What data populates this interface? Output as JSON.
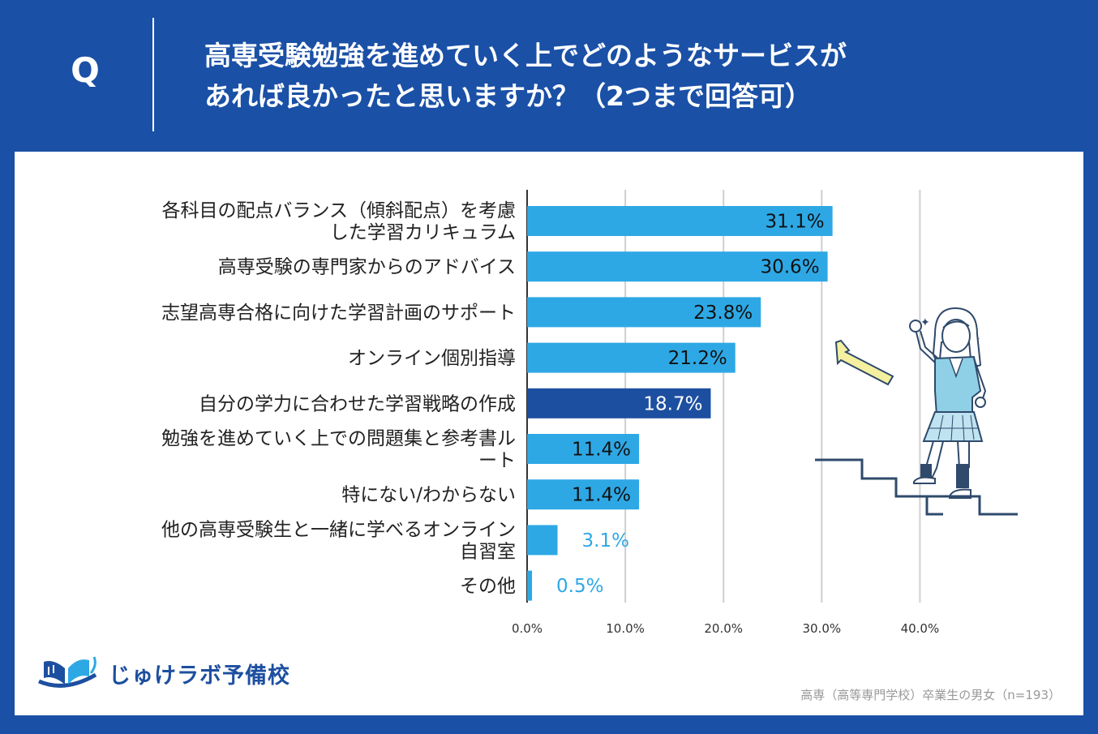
{
  "header": {
    "q_mark": "Q",
    "question_line1": "高専受験勉強を進めていく上でどのようなサービスが",
    "question_line2": "あれば良かったと思いますか？（2つまで回答可）"
  },
  "logo": {
    "text": "じゅけラボ予備校"
  },
  "footnote": "高専（高等専門学校）卒業生の男女（n=193）",
  "colors": {
    "background": "#1a50a6",
    "bar": "#2ea8e5",
    "bar_highlight": "#1d4fa0",
    "grid": "#cfcfcf",
    "axis": "#333333"
  },
  "chart_data": {
    "type": "bar",
    "orientation": "horizontal",
    "title": "",
    "xlabel": "",
    "ylabel": "",
    "xlim": [
      0,
      40
    ],
    "ticks": [
      0,
      10,
      20,
      30,
      40
    ],
    "tick_labels": [
      "0.0%",
      "10.0%",
      "20.0%",
      "30.0%",
      "40.0%"
    ],
    "grid": true,
    "highlight_index": 4,
    "categories": [
      [
        "各科目の配点バランス（傾斜配点）を考慮",
        "した学習カリキュラム"
      ],
      [
        "高専受験の専門家からのアドバイス"
      ],
      [
        "志望高専合格に向けた学習計画のサポート"
      ],
      [
        "オンライン個別指導"
      ],
      [
        "自分の学力に合わせた学習戦略の作成"
      ],
      [
        "勉強を進めていく上での問題集と参考書ル",
        "ート"
      ],
      [
        "特にない/わからない"
      ],
      [
        "他の高専受験生と一緒に学べるオンライン",
        "自習室"
      ],
      [
        "その他"
      ]
    ],
    "values": [
      31.1,
      30.6,
      23.8,
      21.2,
      18.7,
      11.4,
      11.4,
      3.1,
      0.5
    ],
    "value_labels": [
      "31.1%",
      "30.6%",
      "23.8%",
      "21.2%",
      "18.7%",
      "11.4%",
      "11.4%",
      "3.1%",
      "0.5%"
    ]
  }
}
